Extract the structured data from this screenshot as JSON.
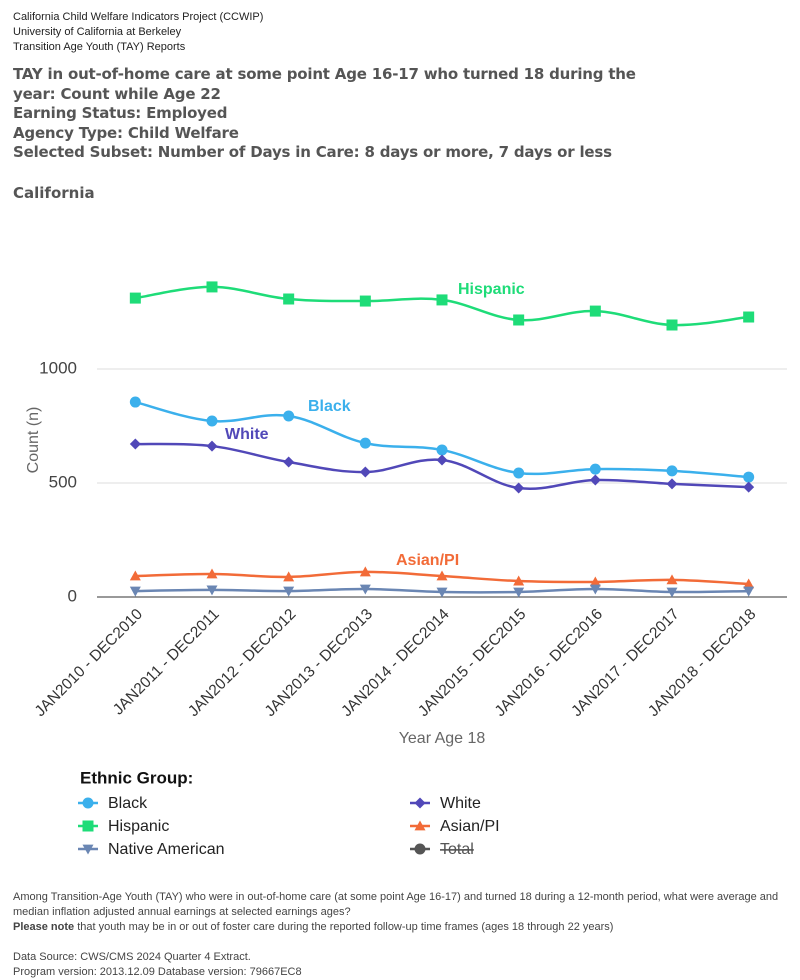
{
  "header": {
    "lines": [
      "California Child Welfare Indicators Project (CCWIP)",
      "University of California at Berkeley",
      "Transition Age Youth (TAY) Reports"
    ],
    "title": "TAY in out-of-home care at some point Age 16-17 who turned 18 during the year: Count while Age 22",
    "subtitles": [
      "Earning Status: Employed",
      "Agency Type: Child Welfare",
      "Selected Subset: Number of Days in Care: 8 days or more, 7 days or less"
    ],
    "region": "California"
  },
  "chart_data": {
    "type": "line",
    "x_label": "Year Age 18",
    "y_label": "Count (n)",
    "categories": [
      "JAN2010 - DEC2010",
      "JAN2011 - DEC2011",
      "JAN2012 - DEC2012",
      "JAN2013 - DEC2013",
      "JAN2014 - DEC2014",
      "JAN2015 - DEC2015",
      "JAN2016 - DEC2016",
      "JAN2017 - DEC2017",
      "JAN2018 - DEC2018"
    ],
    "ylim": [
      0,
      1500
    ],
    "yticks": [
      0,
      500,
      1000
    ],
    "grid": true,
    "smooth": true,
    "legend_title": "Ethnic Group:",
    "series": [
      {
        "name": "Black",
        "color": "#3bb0ec",
        "marker": "circle",
        "values": [
          855,
          772,
          794,
          675,
          645,
          544,
          561,
          553,
          526
        ]
      },
      {
        "name": "White",
        "color": "#5148b8",
        "marker": "diamond",
        "values": [
          671,
          662,
          592,
          548,
          601,
          478,
          513,
          496,
          482
        ]
      },
      {
        "name": "Hispanic",
        "color": "#1edc78",
        "marker": "square",
        "values": [
          1311,
          1360,
          1307,
          1298,
          1303,
          1215,
          1254,
          1193,
          1228
        ]
      },
      {
        "name": "Asian/PI",
        "color": "#f26b38",
        "marker": "triangle-up",
        "values": [
          92,
          101,
          88,
          110,
          92,
          70,
          66,
          75,
          57
        ]
      },
      {
        "name": "Native American",
        "color": "#6a86b3",
        "marker": "triangle-down",
        "values": [
          26,
          31,
          26,
          35,
          22,
          22,
          35,
          22,
          26
        ]
      },
      {
        "name": "Total",
        "color": "#555555",
        "marker": "circle",
        "hidden": true,
        "values": [
          null,
          null,
          null,
          null,
          null,
          null,
          null,
          null,
          null
        ]
      }
    ]
  },
  "footer": {
    "question": "Among Transition-Age Youth (TAY) who were in out-of-home care (at some point Age 16-17) and turned 18 during a 12-month period, what were average and median inflation adjusted annual earnings at selected earnings ages?",
    "note_bold": "Please note",
    "note_rest": " that youth may be in or out of foster care during the reported follow-up time frames (ages 18 through 22 years)",
    "source_lines": [
      "Data Source: CWS/CMS 2024 Quarter 4 Extract.",
      "Program version: 2013.12.09 Database version: 79667EC8"
    ]
  }
}
